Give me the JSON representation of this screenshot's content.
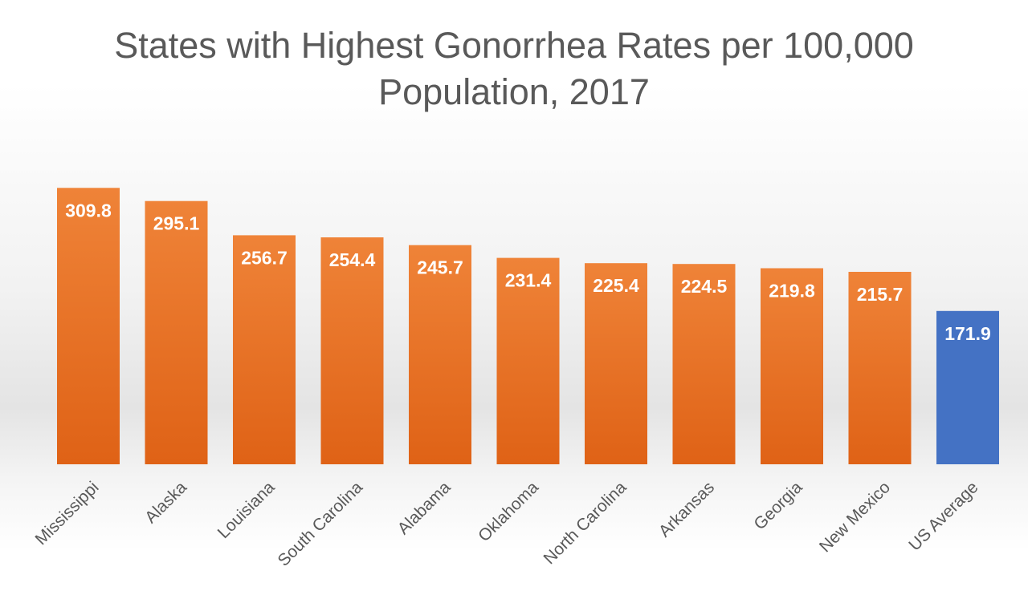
{
  "chart_data": {
    "type": "bar",
    "title": "States with Highest Gonorrhea Rates per 100,000 Population, 2017",
    "categories": [
      "Mississippi",
      "Alaska",
      "Louisiana",
      "South Carolina",
      "Alabama",
      "Oklahoma",
      "North Carolina",
      "Arkansas",
      "Georgia",
      "New Mexico",
      "US Average"
    ],
    "values": [
      309.8,
      295.1,
      256.7,
      254.4,
      245.7,
      231.4,
      225.4,
      224.5,
      219.8,
      215.7,
      171.9
    ],
    "data_labels": [
      "309.8",
      "295.1",
      "256.7",
      "254.4",
      "245.7",
      "231.4",
      "225.4",
      "224.5",
      "219.8",
      "215.7",
      "171.9"
    ],
    "xlabel": "",
    "ylabel": "",
    "ylim": [
      0,
      320
    ],
    "grid": false,
    "legend": "none",
    "colors": {
      "states": "#ED7D31",
      "average": "#4472C4",
      "title": "#595959",
      "labels": "#ffffff",
      "ticks": "#595959"
    }
  }
}
